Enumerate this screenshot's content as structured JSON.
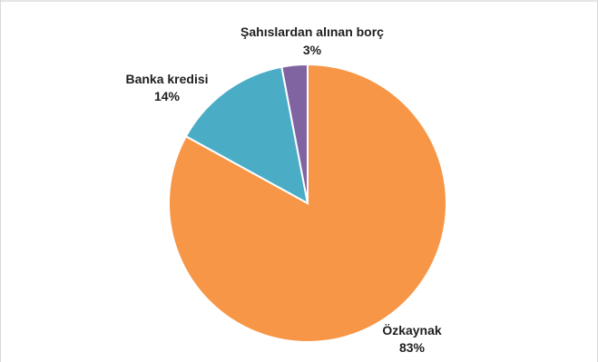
{
  "chart_data": {
    "type": "pie",
    "title": "",
    "start_angle_deg": 0,
    "direction": "clockwise",
    "legend": "none",
    "slices": [
      {
        "label": "Özkaynak",
        "value": 83,
        "value_label": "83%",
        "color": "#F79646"
      },
      {
        "label": "Banka kredisi",
        "value": 14,
        "value_label": "14%",
        "color": "#4BACC6"
      },
      {
        "label": "Şahıslardan alınan borç",
        "value": 3,
        "value_label": "3%",
        "color": "#8064A2"
      }
    ]
  }
}
